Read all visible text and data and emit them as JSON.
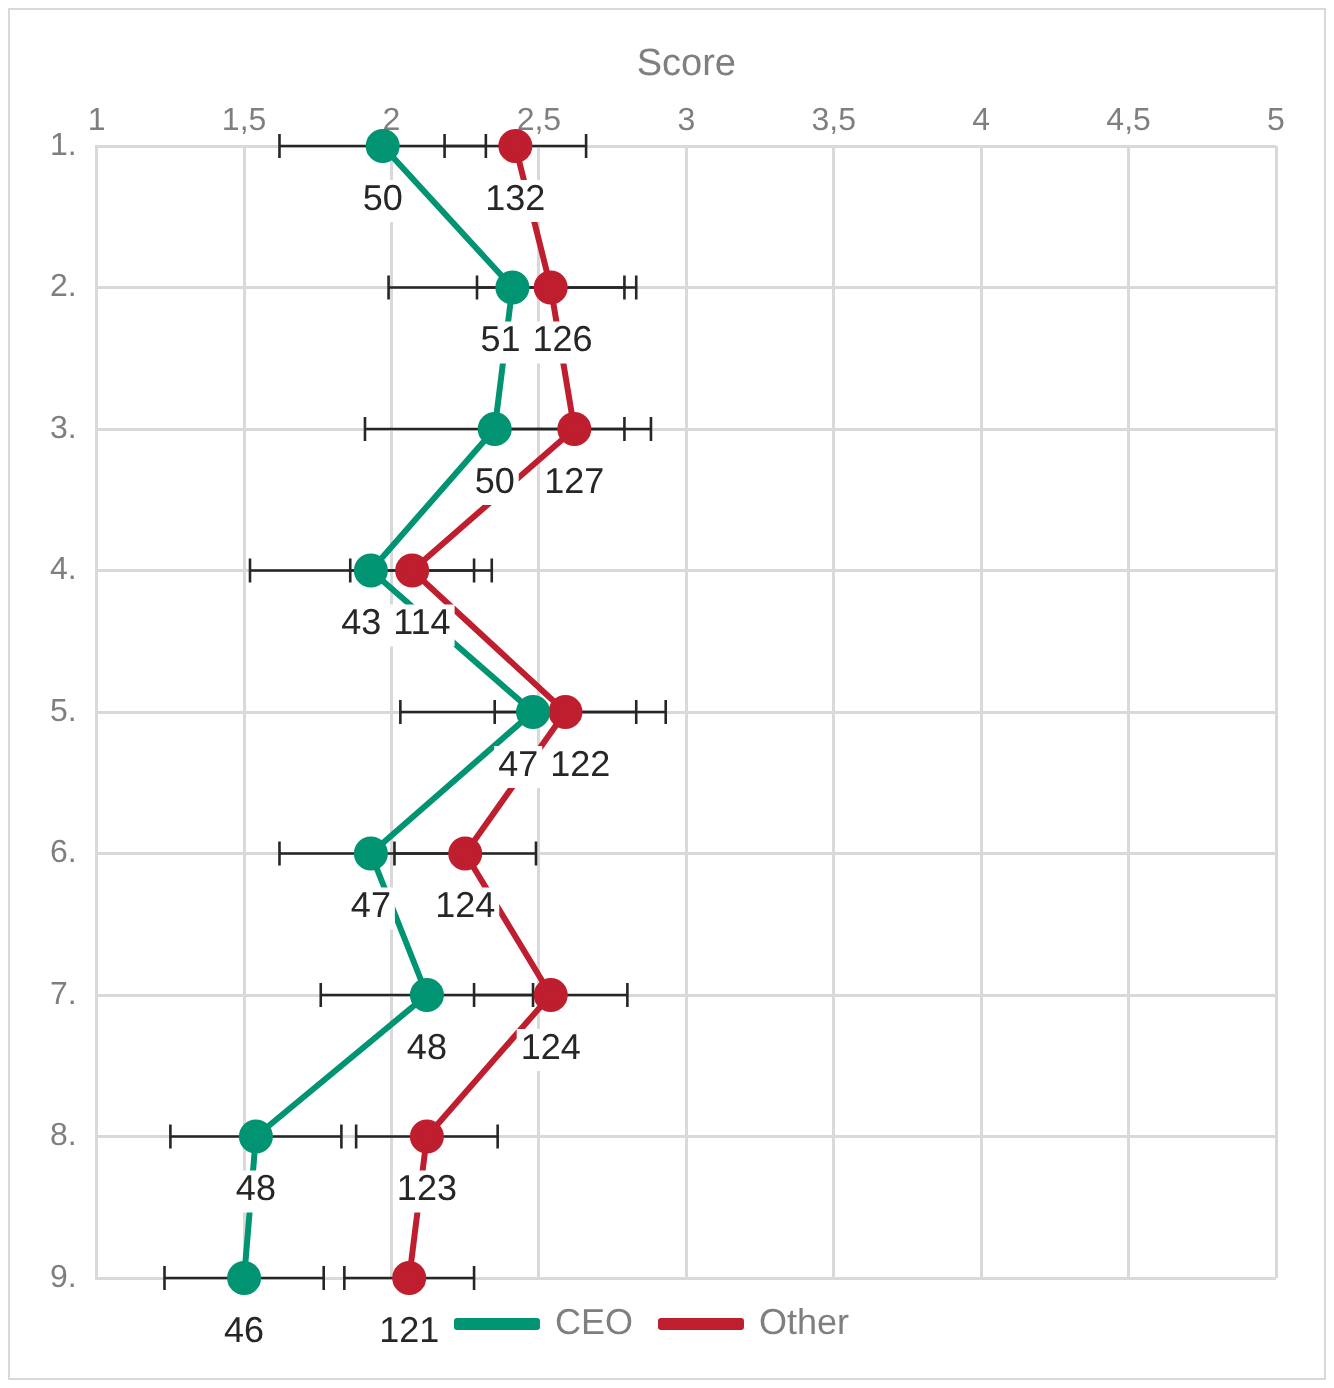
{
  "chart_data": {
    "type": "line",
    "orientation": "horizontal",
    "xlabel": "Score",
    "categories": [
      "1.",
      "2.",
      "3.",
      "4.",
      "5.",
      "6.",
      "7.",
      "8.",
      "9."
    ],
    "xlim": [
      1,
      5
    ],
    "xticks": [
      1,
      {
        "value": 1.5,
        "label": "1,5"
      },
      2,
      {
        "value": 2.5,
        "label": "2,5"
      },
      3,
      {
        "value": 3.5,
        "label": "3,5"
      },
      4,
      {
        "value": 4.5,
        "label": "4,5"
      },
      5
    ],
    "grid": true,
    "legend": "bottom",
    "marker": "circle",
    "line_style": "solid",
    "series": [
      {
        "name": "CEO",
        "color": "#009473",
        "values": [
          1.97,
          2.41,
          2.35,
          1.93,
          2.48,
          1.93,
          2.12,
          1.54,
          1.5
        ],
        "errors": [
          0.35,
          0.42,
          0.44,
          0.41,
          0.45,
          0.31,
          0.36,
          0.29,
          0.27
        ]
      },
      {
        "name": "Other",
        "color": "#be1e2d",
        "values": [
          2.42,
          2.54,
          2.62,
          2.07,
          2.59,
          2.25,
          2.54,
          2.12,
          2.06
        ],
        "errors": [
          0.24,
          0.25,
          0.26,
          0.21,
          0.24,
          0.24,
          0.26,
          0.24,
          0.22
        ]
      }
    ],
    "annotations": [
      {
        "text": "50",
        "x": 1.97,
        "y": "1."
      },
      {
        "text": "51",
        "x": 2.41,
        "y": "2."
      },
      {
        "text": "50",
        "x": 2.35,
        "y": "3."
      },
      {
        "text": "43",
        "x": 1.93,
        "y": "4."
      },
      {
        "text": "47",
        "x": 2.48,
        "y": "5."
      },
      {
        "text": "47",
        "x": 1.93,
        "y": "6."
      },
      {
        "text": "48",
        "x": 2.12,
        "y": "7."
      },
      {
        "text": "48",
        "x": 1.54,
        "y": "8."
      },
      {
        "text": "46",
        "x": 1.5,
        "y": "9."
      },
      {
        "text": "132",
        "x": 2.42,
        "y": "1."
      },
      {
        "text": "126",
        "x": 2.54,
        "y": "2."
      },
      {
        "text": "127",
        "x": 2.62,
        "y": "3."
      },
      {
        "text": "114",
        "x": 2.07,
        "y": "4."
      },
      {
        "text": "122",
        "x": 2.59,
        "y": "5."
      },
      {
        "text": "124",
        "x": 2.25,
        "y": "6."
      },
      {
        "text": "124",
        "x": 2.54,
        "y": "7."
      },
      {
        "text": "123",
        "x": 2.12,
        "y": "8."
      },
      {
        "text": "121",
        "x": 2.06,
        "y": "9."
      }
    ]
  }
}
